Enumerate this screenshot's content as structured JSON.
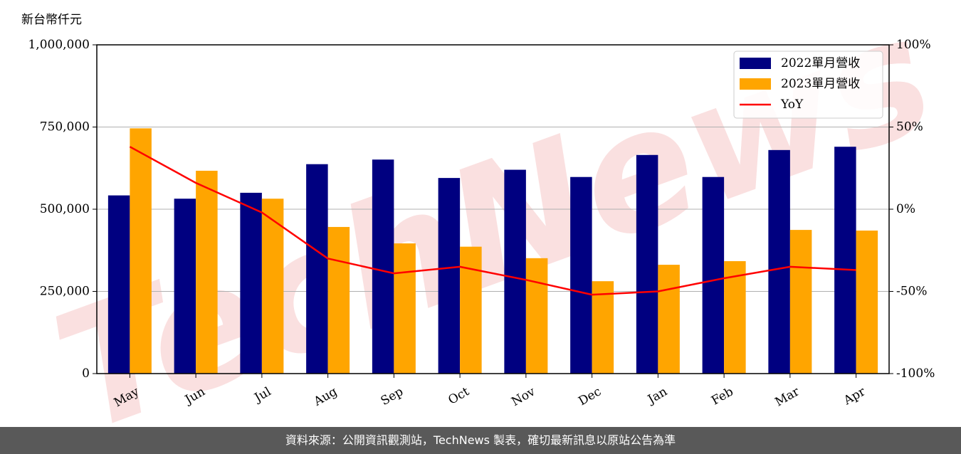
{
  "unit_label": "新台幣仟元",
  "footer_text": "資料來源：公開資訊觀測站，TechNews 製表，確切最新訊息以原站公告為準",
  "watermark_text": "TechNews",
  "colors": {
    "bar_2022": "#000080",
    "bar_2023": "#ffa500",
    "line_yoy": "#ff0000",
    "grid": "#b0b0b0",
    "footer_bg": "#595959",
    "watermark": "#f2a8a8"
  },
  "chart_data": {
    "type": "bar",
    "categories": [
      "May",
      "Jun",
      "Jul",
      "Aug",
      "Sep",
      "Oct",
      "Nov",
      "Dec",
      "Jan",
      "Feb",
      "Mar",
      "Apr"
    ],
    "series": [
      {
        "name": "2022單月營收",
        "type": "bar",
        "axis": "left",
        "values": [
          542000,
          532000,
          550000,
          637000,
          651000,
          595000,
          620000,
          598000,
          665000,
          598000,
          680000,
          690000
        ]
      },
      {
        "name": "2023單月營收",
        "type": "bar",
        "axis": "left",
        "values": [
          746000,
          617000,
          532000,
          446000,
          396000,
          386000,
          351000,
          281000,
          331000,
          342000,
          437000,
          435000
        ]
      },
      {
        "name": "YoY",
        "type": "line",
        "axis": "right",
        "values": [
          38,
          16,
          -2,
          -30,
          -39,
          -35,
          -43,
          -52,
          -50,
          -42,
          -35,
          -37
        ]
      }
    ],
    "left_axis": {
      "ylim": [
        0,
        1000000
      ],
      "ticks": [
        0,
        250000,
        500000,
        750000,
        1000000
      ],
      "tick_labels": [
        "0",
        "250,000",
        "500,000",
        "750,000",
        "1,000,000"
      ]
    },
    "right_axis": {
      "ylim": [
        -100,
        100
      ],
      "ticks": [
        -100,
        -50,
        0,
        50,
        100
      ],
      "tick_labels": [
        "-100%",
        "-50%",
        "0%",
        "50%",
        "100%"
      ]
    },
    "grid": true,
    "legend_position": "top-right"
  }
}
